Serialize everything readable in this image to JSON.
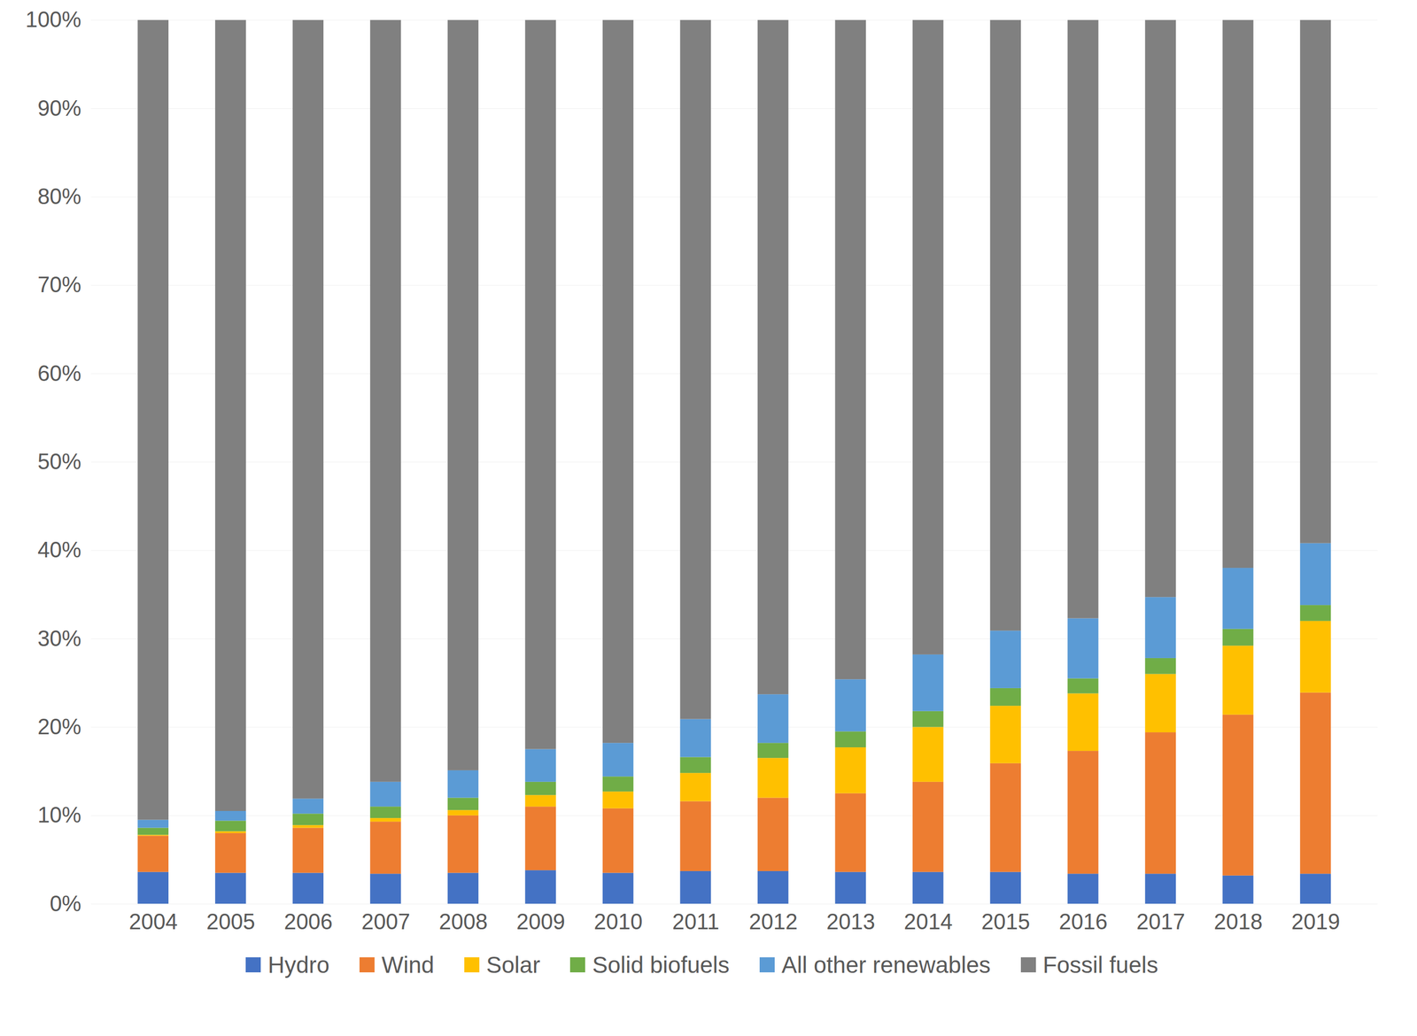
{
  "chart_data": {
    "type": "bar",
    "stacked": true,
    "grid": true,
    "legend": "bottom",
    "categories": [
      "2004",
      "2005",
      "2006",
      "2007",
      "2008",
      "2009",
      "2010",
      "2011",
      "2012",
      "2013",
      "2014",
      "2015",
      "2016",
      "2017",
      "2018",
      "2019"
    ],
    "ylim": [
      0,
      100
    ],
    "yticks": [
      {
        "value": 0,
        "label": "0%"
      },
      {
        "value": 10,
        "label": "10%"
      },
      {
        "value": 20,
        "label": "20%"
      },
      {
        "value": 30,
        "label": "30%"
      },
      {
        "value": 40,
        "label": "40%"
      },
      {
        "value": 50,
        "label": "50%"
      },
      {
        "value": 60,
        "label": "60%"
      },
      {
        "value": 70,
        "label": "70%"
      },
      {
        "value": 80,
        "label": "80%"
      },
      {
        "value": 90,
        "label": "90%"
      },
      {
        "value": 100,
        "label": "100%"
      }
    ],
    "series": [
      {
        "name": "Hydro",
        "color": "#4472c4",
        "values": [
          3.6,
          3.5,
          3.5,
          3.4,
          3.5,
          3.8,
          3.5,
          3.7,
          3.7,
          3.6,
          3.6,
          3.6,
          3.4,
          3.4,
          3.2,
          3.4
        ]
      },
      {
        "name": "Wind",
        "color": "#ed7d31",
        "values": [
          4.1,
          4.5,
          5.1,
          5.9,
          6.5,
          7.2,
          7.3,
          7.9,
          8.3,
          8.9,
          10.2,
          12.3,
          13.9,
          16.0,
          18.2,
          20.5
        ]
      },
      {
        "name": "Solar",
        "color": "#ffc000",
        "values": [
          0.1,
          0.2,
          0.3,
          0.4,
          0.6,
          1.3,
          1.9,
          3.2,
          4.5,
          5.2,
          6.2,
          6.5,
          6.5,
          6.6,
          7.8,
          8.1
        ]
      },
      {
        "name": "Solid biofuels",
        "color": "#70ad47",
        "values": [
          0.8,
          1.2,
          1.3,
          1.3,
          1.4,
          1.5,
          1.7,
          1.8,
          1.7,
          1.8,
          1.8,
          2.0,
          1.7,
          1.8,
          1.9,
          1.8
        ]
      },
      {
        "name": "All other renewables",
        "color": "#5b9bd5",
        "values": [
          0.9,
          1.1,
          1.7,
          2.8,
          3.1,
          3.7,
          3.8,
          4.3,
          5.5,
          5.9,
          6.4,
          6.5,
          6.8,
          6.9,
          6.9,
          7.0
        ]
      },
      {
        "name": "Fossil fuels",
        "color": "#808080",
        "values": [
          90.5,
          89.5,
          88.1,
          86.2,
          84.9,
          82.5,
          81.8,
          79.1,
          76.3,
          74.6,
          71.8,
          69.1,
          67.7,
          65.3,
          62.0,
          59.2
        ]
      }
    ]
  }
}
